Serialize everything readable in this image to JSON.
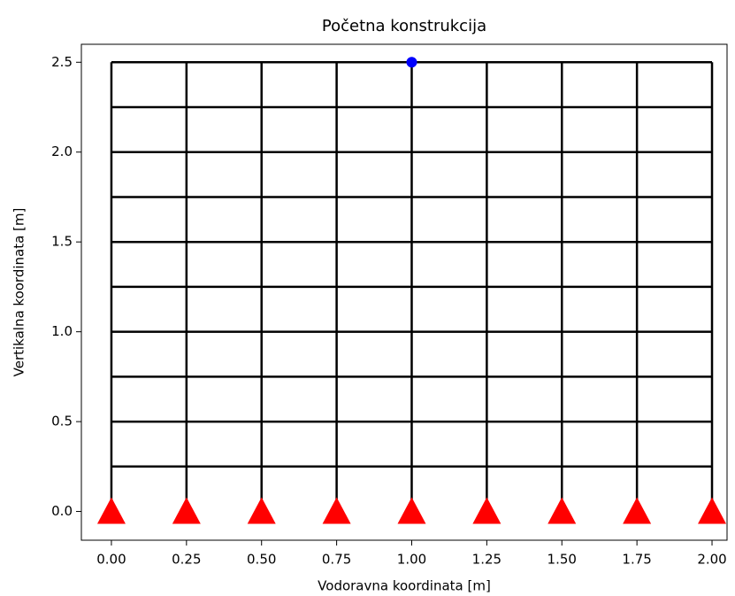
{
  "chart_data": {
    "type": "frame",
    "title": "Početna konstrukcija",
    "xlabel": "Vodoravna koordinata [m]",
    "ylabel": "Vertikalna koordinata [m]",
    "columns_x": [
      0,
      0.25,
      0.5,
      0.75,
      1.0,
      1.25,
      1.5,
      1.75,
      2.0
    ],
    "floors_y": [
      0.25,
      0.5,
      0.75,
      1.0,
      1.25,
      1.5,
      1.75,
      2.0,
      2.25,
      2.5
    ],
    "frame_color": "black",
    "supports": {
      "x": [
        0,
        0.25,
        0.5,
        0.75,
        1.0,
        1.25,
        1.5,
        1.75,
        2.0
      ],
      "y": [
        0,
        0,
        0,
        0,
        0,
        0,
        0,
        0,
        0
      ],
      "color": "red"
    },
    "marker": {
      "x": 1.0,
      "y": 2.5,
      "color": "blue"
    },
    "xlim": [
      -0.1,
      2.05
    ],
    "ylim": [
      -0.16,
      2.6
    ],
    "xticks": [
      {
        "value": 0,
        "label": "0.00"
      },
      {
        "value": 0.25,
        "label": "0.25"
      },
      {
        "value": 0.5,
        "label": "0.50"
      },
      {
        "value": 0.75,
        "label": "0.75"
      },
      {
        "value": 1,
        "label": "1.00"
      },
      {
        "value": 1.25,
        "label": "1.25"
      },
      {
        "value": 1.5,
        "label": "1.50"
      },
      {
        "value": 1.75,
        "label": "1.75"
      },
      {
        "value": 2,
        "label": "2.00"
      }
    ],
    "yticks": [
      {
        "value": 0,
        "label": "0.0"
      },
      0.5,
      {
        "value": 1,
        "label": "1.0"
      },
      1.5,
      {
        "value": 2,
        "label": "2.0"
      },
      2.5
    ]
  }
}
